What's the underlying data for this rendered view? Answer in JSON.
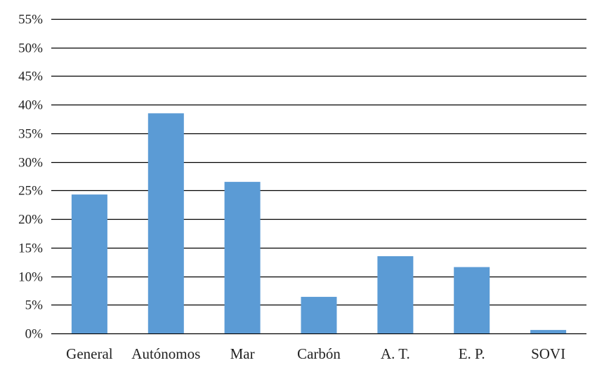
{
  "chart_data": {
    "type": "bar",
    "categories": [
      "General",
      "Autónomos",
      "Mar",
      "Carbón",
      "A. T.",
      "E. P.",
      "SOVI"
    ],
    "values": [
      24.3,
      38.5,
      26.5,
      6.4,
      13.5,
      11.6,
      0.6
    ],
    "ylim": [
      0,
      55
    ],
    "yticks": [
      0,
      5,
      10,
      15,
      20,
      25,
      30,
      35,
      40,
      45,
      50,
      55
    ],
    "ytick_labels": [
      "0%",
      "5%",
      "10%",
      "15%",
      "20%",
      "25%",
      "30%",
      "35%",
      "40%",
      "45%",
      "50%",
      "55%"
    ],
    "grid": true,
    "colors": {
      "bar": "#5b9bd5",
      "grid": "#000000"
    }
  }
}
